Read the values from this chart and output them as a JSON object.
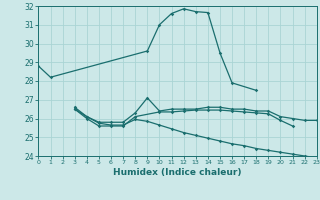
{
  "background_color": "#cce8e8",
  "grid_color": "#aad4d4",
  "line_color": "#1a6e6e",
  "xlabel": "Humidex (Indice chaleur)",
  "xlim_min": 0,
  "xlim_max": 23,
  "ylim_min": 24,
  "ylim_max": 32,
  "yticks": [
    24,
    25,
    26,
    27,
    28,
    29,
    30,
    31,
    32
  ],
  "xticks": [
    0,
    1,
    2,
    3,
    4,
    5,
    6,
    7,
    8,
    9,
    10,
    11,
    12,
    13,
    14,
    15,
    16,
    17,
    18,
    19,
    20,
    21,
    22,
    23
  ],
  "curve1_x": [
    0,
    1,
    9,
    10,
    11,
    12,
    13,
    14,
    15,
    16,
    18
  ],
  "curve1_y": [
    28.8,
    28.2,
    29.6,
    31.0,
    31.6,
    31.85,
    31.7,
    31.65,
    29.5,
    27.9,
    27.5
  ],
  "curve2_x": [
    3,
    4,
    5,
    6,
    7,
    8,
    9,
    10,
    11,
    12,
    13,
    14,
    15,
    16,
    17,
    18,
    19,
    20,
    21,
    22,
    23
  ],
  "curve2_y": [
    26.6,
    26.1,
    25.8,
    25.8,
    25.8,
    26.3,
    27.1,
    26.4,
    26.5,
    26.5,
    26.5,
    26.6,
    26.6,
    26.5,
    26.5,
    26.4,
    26.4,
    26.1,
    26.0,
    25.9,
    25.9
  ],
  "curve3_x": [
    3,
    4,
    5,
    6,
    7,
    8,
    10,
    11,
    12,
    13,
    14,
    15,
    16,
    17,
    18,
    19,
    20,
    21
  ],
  "curve3_y": [
    26.5,
    26.0,
    25.6,
    25.6,
    25.6,
    26.1,
    26.35,
    26.35,
    26.4,
    26.45,
    26.45,
    26.45,
    26.4,
    26.35,
    26.3,
    26.25,
    25.9,
    25.6
  ],
  "curve4_x": [
    3,
    4,
    5,
    6,
    7,
    8,
    9,
    10,
    11,
    12,
    13,
    14,
    15,
    16,
    17,
    18,
    19,
    20,
    21,
    22,
    23
  ],
  "curve4_y": [
    26.5,
    26.1,
    25.75,
    25.65,
    25.65,
    25.95,
    25.85,
    25.65,
    25.45,
    25.25,
    25.1,
    24.95,
    24.8,
    24.65,
    24.55,
    24.4,
    24.3,
    24.2,
    24.1,
    24.0,
    23.9
  ]
}
